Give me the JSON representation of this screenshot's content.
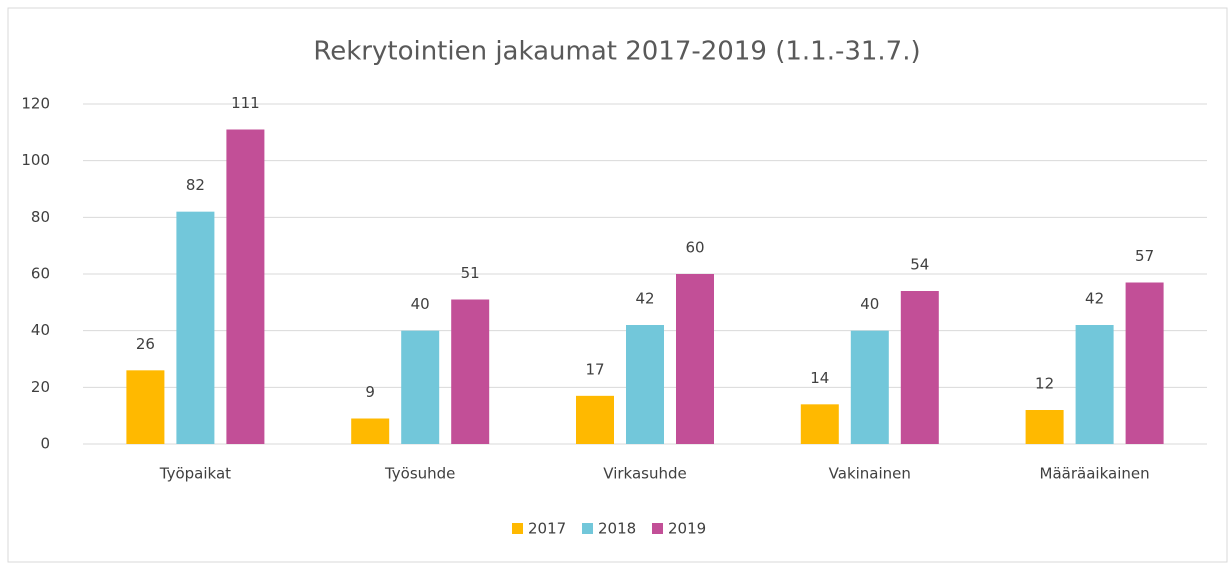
{
  "chart_data": {
    "type": "bar",
    "title": "Rekrytointien jakaumat 2017-2019 (1.1.-31.7.)",
    "categories": [
      "Työpaikat",
      "Työsuhde",
      "Virkasuhde",
      "Vakinainen",
      "Määräaikainen"
    ],
    "series": [
      {
        "name": "2017",
        "color": "#ffb900",
        "values": [
          26,
          9,
          17,
          14,
          12
        ]
      },
      {
        "name": "2018",
        "color": "#72c7da",
        "values": [
          82,
          40,
          42,
          40,
          42
        ]
      },
      {
        "name": "2019",
        "color": "#c24f97",
        "values": [
          111,
          51,
          60,
          54,
          57
        ]
      }
    ],
    "ylim": [
      0,
      120
    ],
    "yticks": [
      0,
      20,
      40,
      60,
      80,
      100,
      120
    ],
    "grid": true,
    "legend": "bottom"
  }
}
